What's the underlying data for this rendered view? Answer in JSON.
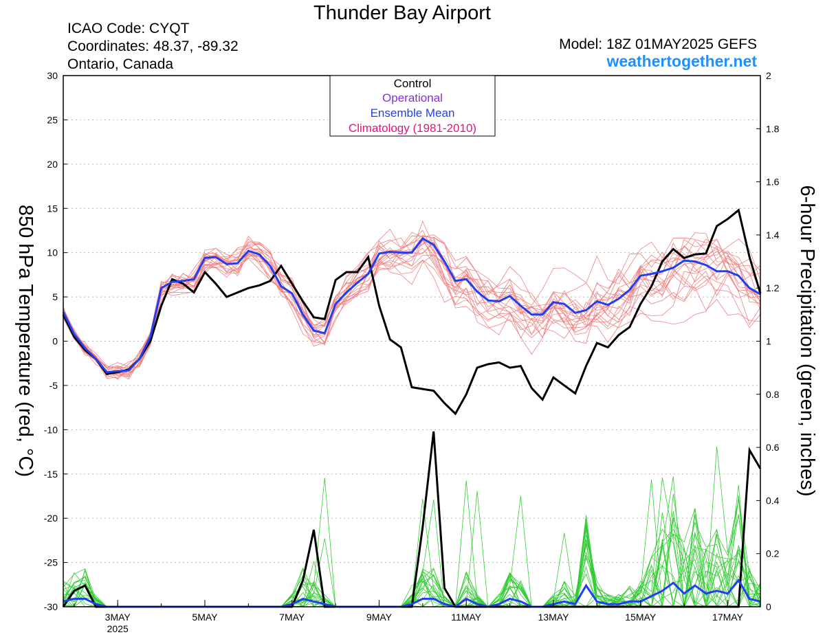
{
  "header": {
    "title": "Thunder Bay Airport",
    "icao": "ICAO Code: CYQT",
    "coords": "Coordinates: 48.37, -89.32",
    "region": "Ontario, Canada",
    "model": "Model: 18Z 01MAY2025 GEFS",
    "site": "weathertogether.net"
  },
  "chart_data": {
    "type": "line",
    "ylabel": "850 hPa Temperature (red, °C)",
    "y2label": "6-hour Precipitation (green, inches)",
    "ylim": [
      -30,
      30
    ],
    "y2lim": [
      0,
      2
    ],
    "yticks": [
      "30",
      "25",
      "20",
      "15",
      "10",
      "5",
      "0",
      "-5",
      "-10",
      "-15",
      "-20",
      "-25",
      "-30"
    ],
    "y2ticks": [
      "2",
      "1.8",
      "1.6",
      "1.4",
      "1.2",
      "1",
      "0.8",
      "0.6",
      "0.4",
      "0.2",
      "0"
    ],
    "xticks": [
      {
        "label": "3MAY",
        "sub": "2025",
        "day": 3
      },
      {
        "label": "5MAY",
        "sub": "",
        "day": 5
      },
      {
        "label": "7MAY",
        "sub": "",
        "day": 7
      },
      {
        "label": "9MAY",
        "sub": "",
        "day": 9
      },
      {
        "label": "11MAY",
        "sub": "",
        "day": 11
      },
      {
        "label": "13MAY",
        "sub": "",
        "day": 13
      },
      {
        "label": "15MAY",
        "sub": "",
        "day": 15
      },
      {
        "label": "17MAY",
        "sub": "",
        "day": 17
      }
    ],
    "xlim_days": [
      1.75,
      17.75
    ],
    "legend": {
      "placement": "top-center",
      "items": [
        {
          "label": "Control",
          "color": "#000000"
        },
        {
          "label": "Operational",
          "color": "#8a2be2"
        },
        {
          "label": "Ensemble Mean",
          "color": "#1f3ff0"
        },
        {
          "label": "Climatology (1981-2010)",
          "color": "#e0157a"
        }
      ]
    },
    "colors": {
      "members_temp": "#f08080",
      "members_precip": "#33cc33",
      "control": "#000000",
      "mean": "#2040f0",
      "site": "#1e90ff"
    },
    "x_start_day": 1.75,
    "x_step_days": 0.25,
    "control_temp": [
      3.0,
      0.5,
      -1.0,
      -2.0,
      -3.7,
      -3.5,
      -3.2,
      -2.0,
      0.0,
      4.0,
      7.0,
      6.5,
      5.5,
      7.8,
      6.5,
      5.0,
      5.5,
      6.0,
      6.3,
      6.8,
      8.5,
      6.5,
      4.5,
      2.7,
      2.5,
      6.9,
      7.8,
      7.8,
      9.5,
      4.0,
      0.2,
      -0.7,
      -5.2,
      -5.4,
      -5.6,
      -7.0,
      -8.2,
      -6.0,
      -3.0,
      -2.6,
      -2.4,
      -3.0,
      -2.8,
      -5.3,
      -6.6,
      -4.1,
      -5.0,
      -5.9,
      -2.8,
      -0.2,
      -0.7,
      0.7,
      1.6,
      4.2,
      6.2,
      9.0,
      10.4,
      9.4,
      9.8,
      9.9,
      13.0,
      13.8,
      14.8,
      9.5,
      5.4
    ],
    "mean_temp": [
      3.3,
      0.8,
      -0.8,
      -2.0,
      -3.5,
      -3.4,
      -3.3,
      -2.0,
      0.5,
      6.0,
      6.7,
      6.8,
      7.0,
      9.4,
      9.5,
      8.7,
      8.8,
      10.2,
      9.8,
      8.5,
      6.2,
      5.4,
      3.0,
      1.2,
      0.9,
      4.2,
      5.5,
      6.6,
      7.6,
      9.9,
      10.1,
      10.0,
      10.0,
      11.6,
      10.9,
      9.0,
      6.8,
      7.0,
      5.6,
      4.6,
      4.5,
      5.1,
      4.0,
      3.0,
      3.0,
      4.4,
      4.2,
      3.2,
      3.5,
      4.5,
      4.1,
      4.8,
      5.8,
      7.4,
      7.6,
      7.9,
      8.3,
      9.1,
      9.0,
      8.6,
      7.9,
      7.9,
      7.4,
      6.0,
      5.3
    ],
    "control_precip": [
      0.0,
      0.06,
      0.08,
      0.0,
      0.0,
      0.0,
      0.0,
      0.0,
      0.0,
      0.0,
      0.0,
      0.0,
      0.0,
      0.0,
      0.0,
      0.0,
      0.0,
      0.0,
      0.0,
      0.0,
      0.0,
      0.0,
      0.1,
      0.29,
      0.0,
      0.0,
      0.0,
      0.0,
      0.0,
      0.0,
      0.0,
      0.0,
      0.0,
      0.3,
      0.66,
      0.07,
      0.0,
      0.0,
      0.0,
      0.0,
      0.0,
      0.0,
      0.0,
      0.0,
      0.0,
      0.0,
      0.0,
      0.0,
      0.0,
      0.0,
      0.0,
      0.0,
      0.0,
      0.0,
      0.0,
      0.0,
      0.0,
      0.0,
      0.0,
      0.0,
      0.0,
      0.0,
      0.0,
      0.59,
      0.52
    ],
    "mean_precip": [
      0.02,
      0.03,
      0.03,
      0.01,
      0.0,
      0.0,
      0.0,
      0.0,
      0.0,
      0.0,
      0.0,
      0.0,
      0.0,
      0.0,
      0.0,
      0.0,
      0.0,
      0.0,
      0.0,
      0.0,
      0.0,
      0.01,
      0.03,
      0.02,
      0.01,
      0.0,
      0.0,
      0.0,
      0.0,
      0.0,
      0.0,
      0.0,
      0.01,
      0.03,
      0.03,
      0.01,
      0.0,
      0.03,
      0.01,
      0.0,
      0.01,
      0.03,
      0.02,
      0.0,
      0.0,
      0.01,
      0.02,
      0.01,
      0.08,
      0.02,
      0.01,
      0.01,
      0.02,
      0.02,
      0.04,
      0.06,
      0.09,
      0.05,
      0.08,
      0.05,
      0.06,
      0.05,
      0.1,
      0.03,
      0.02
    ]
  }
}
